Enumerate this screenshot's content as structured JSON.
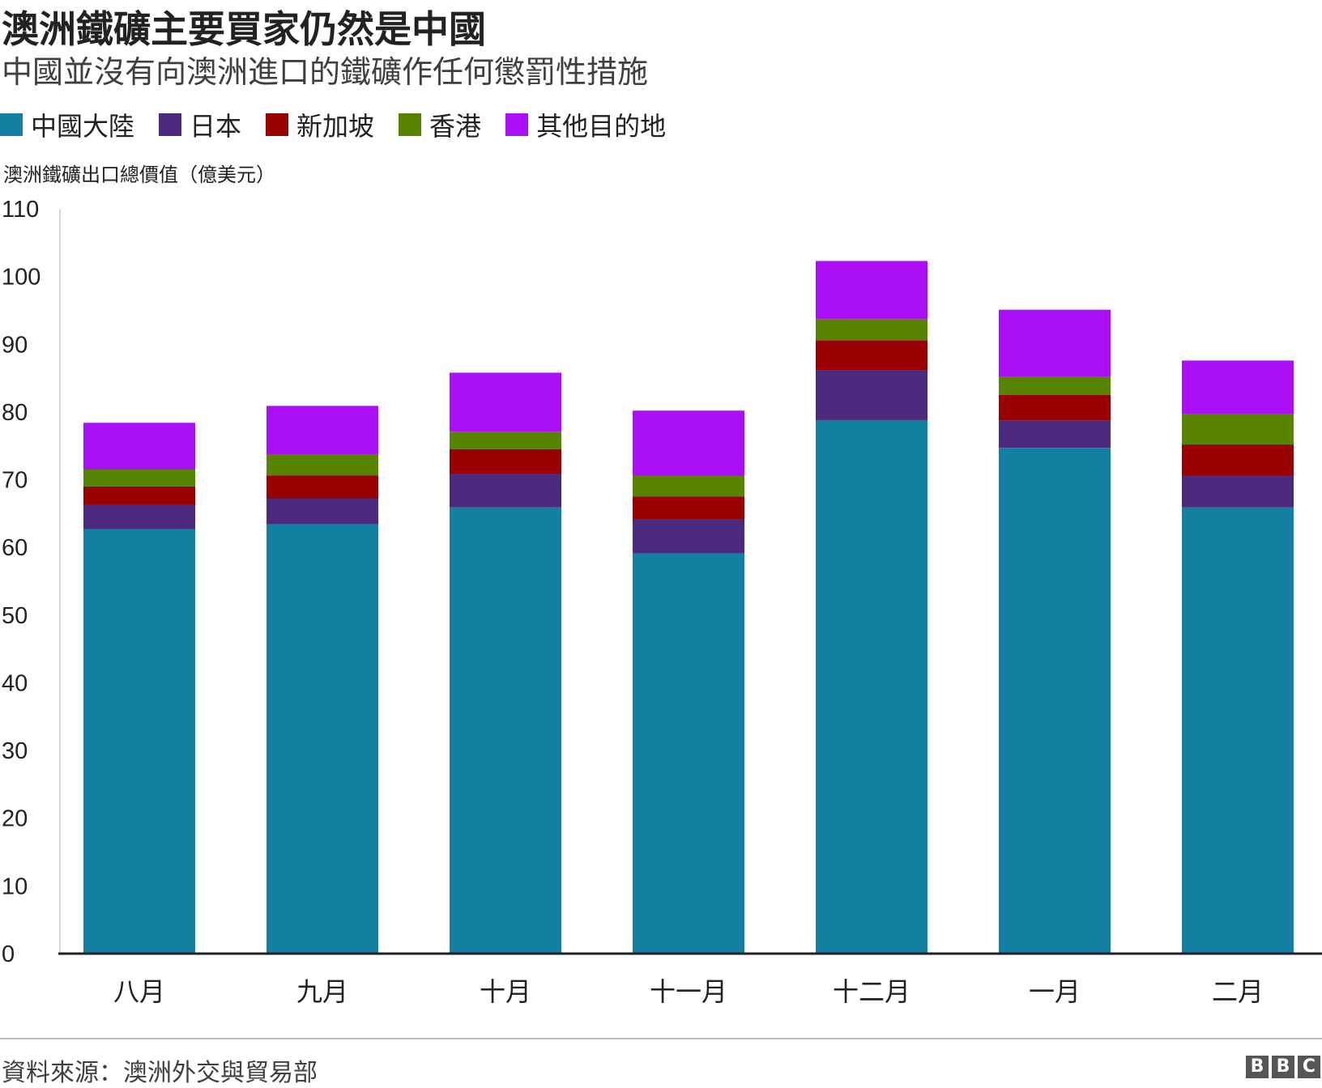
{
  "header": {
    "title": "澳洲鐵礦主要買家仍然是中國",
    "subtitle": "中國並沒有向澳洲進口的鐵礦作任何懲罰性措施"
  },
  "footer": {
    "source": "資料來源：澳洲外交與貿易部",
    "logo_letters": [
      "B",
      "B",
      "C"
    ]
  },
  "colors": {
    "china": "#1380A1",
    "japan": "#4B2A7D",
    "singapore": "#990000",
    "hongkong": "#588300",
    "other": "#AA0FF7",
    "axis": "#222222",
    "gridline": "#cccccc"
  },
  "chart_data": {
    "type": "bar",
    "stacked": true,
    "ylabel": "澳洲鐵礦出口總價值（億美元）",
    "ylim": [
      0,
      110
    ],
    "yticks": [
      0,
      10,
      20,
      30,
      40,
      50,
      60,
      70,
      80,
      90,
      100,
      110
    ],
    "categories": [
      "八月",
      "九月",
      "十月",
      "十一月",
      "十二月",
      "一月",
      "二月"
    ],
    "legend_position": "top",
    "series": [
      {
        "name": "中國大陸",
        "color": "#1380A1",
        "values": [
          62.7,
          63.4,
          65.9,
          59.1,
          78.8,
          74.7,
          65.9
        ]
      },
      {
        "name": "日本",
        "color": "#4B2A7D",
        "values": [
          3.6,
          3.8,
          5.0,
          5.0,
          7.4,
          4.0,
          4.7
        ]
      },
      {
        "name": "新加坡",
        "color": "#990000",
        "values": [
          2.7,
          3.4,
          3.6,
          3.4,
          4.4,
          3.8,
          4.6
        ]
      },
      {
        "name": "香港",
        "color": "#588300",
        "values": [
          2.5,
          3.1,
          2.6,
          3.1,
          3.1,
          2.7,
          4.5
        ]
      },
      {
        "name": "其他目的地",
        "color": "#AA0FF7",
        "values": [
          6.9,
          7.2,
          8.7,
          9.6,
          8.6,
          9.9,
          7.9
        ]
      }
    ]
  }
}
